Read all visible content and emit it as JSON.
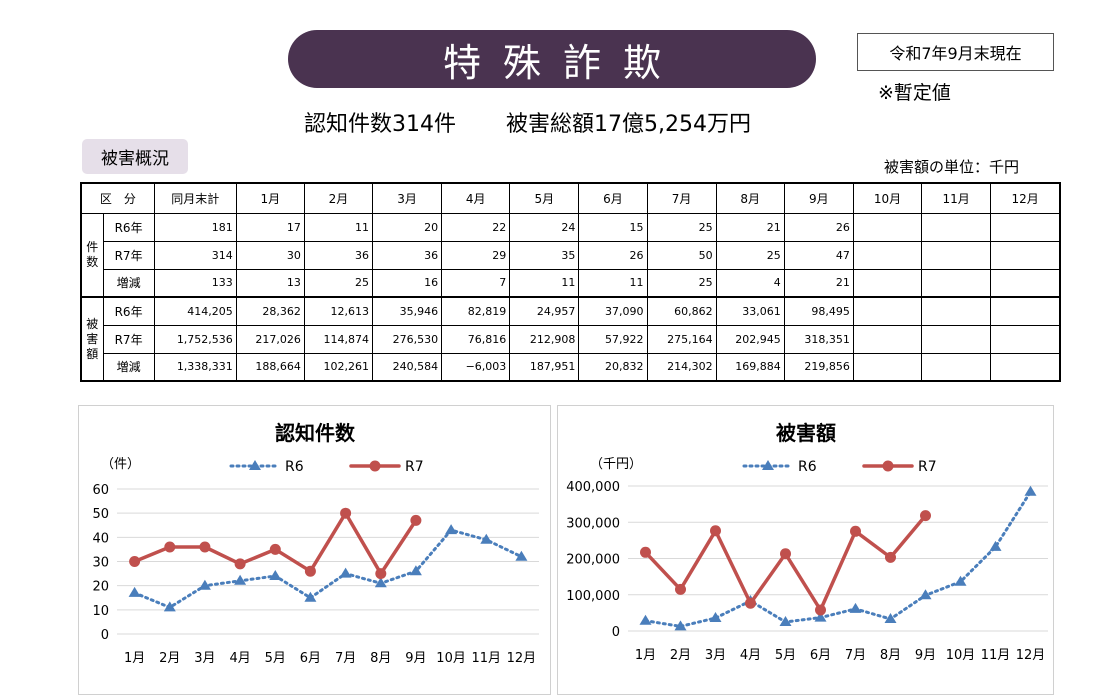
{
  "header": {
    "title": "特殊詐欺",
    "as_of": "令和7年9月末現在",
    "provisional": "※暫定値",
    "summary_count": "認知件数314件",
    "summary_amount": "被害総額17億5,254万円"
  },
  "section": {
    "tag": "被害概況",
    "unit_note": "被害額の単位：千円"
  },
  "table": {
    "headers": [
      "区　分",
      "同月末計",
      "1月",
      "2月",
      "3月",
      "4月",
      "5月",
      "6月",
      "7月",
      "8月",
      "9月",
      "10月",
      "11月",
      "12月"
    ],
    "groups": [
      {
        "label": "件数",
        "rows": [
          {
            "label": "R6年",
            "cells": [
              "181",
              "17",
              "11",
              "20",
              "22",
              "24",
              "15",
              "25",
              "21",
              "26",
              "",
              "",
              ""
            ]
          },
          {
            "label": "R7年",
            "cells": [
              "314",
              "30",
              "36",
              "36",
              "29",
              "35",
              "26",
              "50",
              "25",
              "47",
              "",
              "",
              ""
            ]
          },
          {
            "label": "増減",
            "cells": [
              "133",
              "13",
              "25",
              "16",
              "7",
              "11",
              "11",
              "25",
              "4",
              "21",
              "",
              "",
              ""
            ]
          }
        ]
      },
      {
        "label": "被害額",
        "rows": [
          {
            "label": "R6年",
            "cells": [
              "414,205",
              "28,362",
              "12,613",
              "35,946",
              "82,819",
              "24,957",
              "37,090",
              "60,862",
              "33,061",
              "98,495",
              "",
              "",
              ""
            ]
          },
          {
            "label": "R7年",
            "cells": [
              "1,752,536",
              "217,026",
              "114,874",
              "276,530",
              "76,816",
              "212,908",
              "57,922",
              "275,164",
              "202,945",
              "318,351",
              "",
              "",
              ""
            ]
          },
          {
            "label": "増減",
            "cells": [
              "1,338,331",
              "188,664",
              "102,261",
              "240,584",
              "−6,003",
              "187,951",
              "20,832",
              "214,302",
              "169,884",
              "219,856",
              "",
              "",
              ""
            ]
          }
        ]
      }
    ]
  },
  "chart_data": [
    {
      "type": "line",
      "title": "認知件数",
      "ylabel": "（件）",
      "categories": [
        "1月",
        "2月",
        "3月",
        "4月",
        "5月",
        "6月",
        "7月",
        "8月",
        "9月",
        "10月",
        "11月",
        "12月"
      ],
      "ylim": [
        0,
        60
      ],
      "yticks": [
        0,
        10,
        20,
        30,
        40,
        50,
        60
      ],
      "ytick_labels": [
        "0",
        "10",
        "20",
        "30",
        "40",
        "50",
        "60"
      ],
      "grid": true,
      "legend": "top",
      "series": [
        {
          "name": "R6",
          "color": "#4a7ebb",
          "style": "dotted",
          "values": [
            17,
            11,
            20,
            22,
            24,
            15,
            25,
            21,
            26,
            43,
            39,
            32
          ]
        },
        {
          "name": "R7",
          "color": "#c0504d",
          "style": "solid",
          "values": [
            30,
            36,
            36,
            29,
            35,
            26,
            50,
            25,
            47,
            null,
            null,
            null
          ]
        }
      ]
    },
    {
      "type": "line",
      "title": "被害額",
      "ylabel": "（千円）",
      "categories": [
        "1月",
        "2月",
        "3月",
        "4月",
        "5月",
        "6月",
        "7月",
        "8月",
        "9月",
        "10月",
        "11月",
        "12月"
      ],
      "ylim": [
        0,
        400000
      ],
      "yticks": [
        0,
        100000,
        200000,
        300000,
        400000
      ],
      "ytick_labels": [
        "0",
        "100,000",
        "200,000",
        "300,000",
        "400,000"
      ],
      "grid": true,
      "legend": "top",
      "series": [
        {
          "name": "R6",
          "color": "#4a7ebb",
          "style": "dotted",
          "values": [
            28362,
            12613,
            35946,
            82819,
            24957,
            37090,
            60862,
            33061,
            98495,
            136000,
            232000,
            384000
          ]
        },
        {
          "name": "R7",
          "color": "#c0504d",
          "style": "solid",
          "values": [
            217026,
            114874,
            276530,
            76816,
            212908,
            57922,
            275164,
            202945,
            318351,
            null,
            null,
            null
          ]
        }
      ]
    }
  ]
}
